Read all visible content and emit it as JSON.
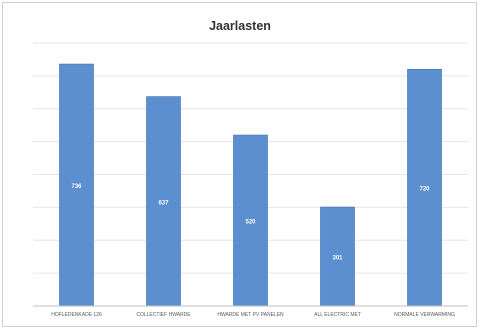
{
  "chart_data": {
    "type": "bar",
    "title": "Jaarlasten",
    "categories": [
      "HOFLEDENKADE 126",
      "COLLECTIEF HWARDE",
      "HWARDE MET PV PANELEN",
      "ALL ELECTRIC MET",
      "NORMALE VERWARMING"
    ],
    "values": [
      736,
      637,
      520,
      301,
      720
    ],
    "value_labels": [
      "736",
      "637",
      "520",
      "301",
      "720"
    ],
    "ylim": [
      0,
      800
    ],
    "grid": true,
    "bar_color": "#5b8fd0",
    "bar_edge_color": "#3d6fae",
    "label_color": "#ffffff"
  }
}
